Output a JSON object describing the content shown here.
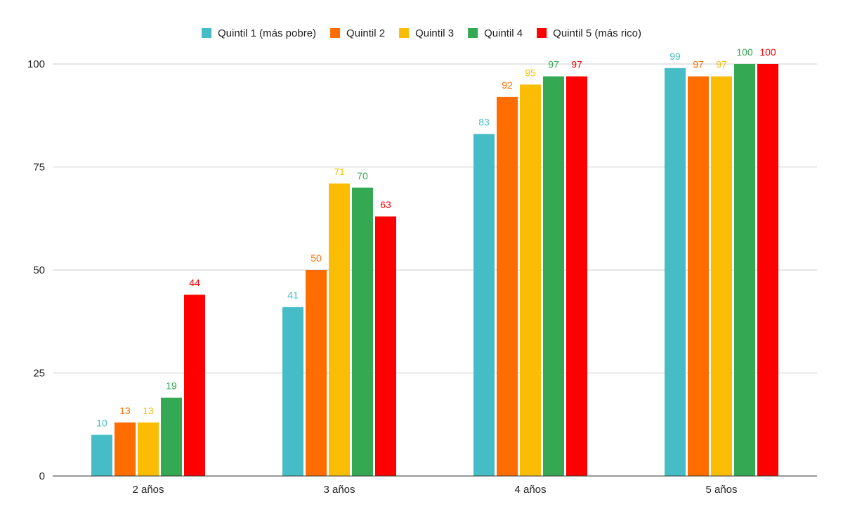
{
  "chart_data": {
    "type": "bar",
    "categories": [
      "2 años",
      "3 años",
      "4 años",
      "5 años"
    ],
    "series": [
      {
        "name": "Quintil 1 (más pobre)",
        "color": "#46bdc6",
        "values": [
          10,
          41,
          83,
          99
        ]
      },
      {
        "name": "Quintil 2",
        "color": "#ff6d01",
        "values": [
          13,
          50,
          92,
          97
        ]
      },
      {
        "name": "Quintil 3",
        "color": "#fbbc04",
        "values": [
          13,
          71,
          95,
          97
        ]
      },
      {
        "name": "Quintil 4",
        "color": "#34a853",
        "values": [
          19,
          70,
          97,
          100
        ]
      },
      {
        "name": "Quintil 5 (más rico)",
        "color": "#ff0000",
        "values": [
          44,
          63,
          97,
          100
        ]
      }
    ],
    "y_ticks": [
      "0",
      "25",
      "50",
      "75",
      "100"
    ],
    "ylim": [
      0,
      100
    ],
    "grid": true,
    "legend_position": "top-center",
    "data_labels": true,
    "title": "",
    "xlabel": "",
    "ylabel": ""
  }
}
